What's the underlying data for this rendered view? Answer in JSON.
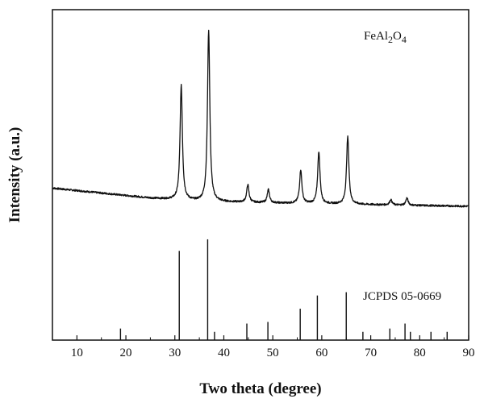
{
  "chart_data": {
    "type": "line",
    "title": "",
    "xlabel": "Two theta (degree)",
    "ylabel": "Intensity (a.u.)",
    "xlim": [
      5,
      90
    ],
    "ylim": [
      0,
      100
    ],
    "x_ticks": [
      10,
      20,
      30,
      40,
      50,
      60,
      70,
      80,
      90
    ],
    "y_ticks_shown": false,
    "grid": false,
    "legend": "none",
    "annotations": {
      "sample_label": {
        "prefix": "FeAl",
        "sub1": "2",
        "mid": "O",
        "sub2": "4"
      },
      "reference_label": "JCPDS 05-0669"
    },
    "series": [
      {
        "style": "line",
        "color": "#111111",
        "peaks": [
          {
            "x": 31.3,
            "y": 77,
            "note": "peak"
          },
          {
            "x": 36.9,
            "y": 93.5,
            "note": "peak"
          },
          {
            "x": 44.9,
            "y": 47,
            "note": "peak"
          },
          {
            "x": 49.1,
            "y": 45.5,
            "note": "peak"
          },
          {
            "x": 55.7,
            "y": 51.5,
            "note": "peak"
          },
          {
            "x": 59.4,
            "y": 57,
            "note": "peak"
          },
          {
            "x": 65.3,
            "y": 61.5,
            "note": "peak"
          },
          {
            "x": 74.1,
            "y": 42.5,
            "note": "peak"
          },
          {
            "x": 77.4,
            "y": 43,
            "note": "peak"
          }
        ],
        "baseline": [
          {
            "x": 5,
            "y": 46
          },
          {
            "x": 15,
            "y": 44.5
          },
          {
            "x": 25,
            "y": 43
          },
          {
            "x": 35,
            "y": 42
          },
          {
            "x": 50,
            "y": 41.5
          },
          {
            "x": 70,
            "y": 41
          },
          {
            "x": 90,
            "y": 40.5
          }
        ]
      },
      {
        "style": "sticks",
        "color": "#111111",
        "sticks": [
          {
            "x": 18.9,
            "y": 3.5
          },
          {
            "x": 30.9,
            "y": 27
          },
          {
            "x": 36.7,
            "y": 30.5
          },
          {
            "x": 38.1,
            "y": 2.5
          },
          {
            "x": 44.7,
            "y": 5
          },
          {
            "x": 49.0,
            "y": 5.5
          },
          {
            "x": 55.6,
            "y": 9.5
          },
          {
            "x": 59.1,
            "y": 13.5
          },
          {
            "x": 65.0,
            "y": 14.5
          },
          {
            "x": 68.4,
            "y": 2.5
          },
          {
            "x": 73.9,
            "y": 3.5
          },
          {
            "x": 77.0,
            "y": 5
          },
          {
            "x": 78.1,
            "y": 2.5
          },
          {
            "x": 82.3,
            "y": 2.5
          },
          {
            "x": 85.6,
            "y": 2.5
          }
        ]
      }
    ]
  }
}
